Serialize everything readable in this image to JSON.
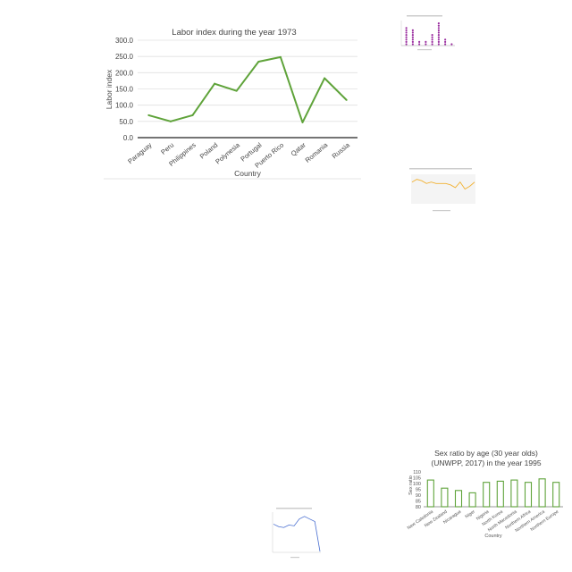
{
  "chart_data": [
    {
      "type": "line",
      "title": "Labor index during the year 1973",
      "xlabel": "Country",
      "ylabel": "Labor index",
      "categories": [
        "Paraguay",
        "Peru",
        "Philippines",
        "Poland",
        "Polynesia",
        "Portugal",
        "Puerto Rico",
        "Qatar",
        "Romania",
        "Russia"
      ],
      "values": [
        69,
        50,
        69,
        166,
        144,
        234,
        248,
        47,
        183,
        116
      ],
      "yticks": [
        "0.0",
        "50.0",
        "100.0",
        "150.0",
        "200.0",
        "250.0",
        "300.0"
      ],
      "ylim": [
        0,
        300
      ],
      "grid": true,
      "color": "#5fa33a"
    },
    {
      "type": "scatter",
      "title": "",
      "xlabel": "",
      "ylabel": "",
      "x": [
        1,
        2,
        3,
        4,
        5,
        6,
        7,
        8
      ],
      "values": [
        24,
        20,
        5,
        6,
        15,
        29,
        10,
        4
      ],
      "ylim": [
        0,
        30
      ],
      "color": "#9b2fa0"
    },
    {
      "type": "line",
      "title": "",
      "xlabel": "",
      "ylabel": "",
      "values": [
        15,
        17,
        16,
        14,
        15,
        14,
        14,
        14,
        13,
        11,
        15,
        10,
        12,
        15
      ],
      "ylim": [
        0,
        20
      ],
      "color": "#f2b233"
    },
    {
      "type": "bar",
      "title": "Sex ratio by age (30 year olds) (UNWPP, 2017) in the year 1995",
      "xlabel": "Country",
      "ylabel": "Sex ratio",
      "categories": [
        "New Caledonia",
        "New Zealand",
        "Nicaragua",
        "Niger",
        "Nigeria",
        "North Korea",
        "North Macedonia",
        "Northern Africa",
        "Northern America",
        "Northern Europe"
      ],
      "values": [
        103,
        96,
        94,
        92,
        101,
        102,
        103,
        101,
        104,
        101
      ],
      "yticks": [
        "80",
        "85",
        "90",
        "95",
        "100",
        "105",
        "110"
      ],
      "ylim": [
        80,
        110
      ],
      "color": "#5fa33a"
    },
    {
      "type": "line",
      "title": "",
      "xlabel": "",
      "ylabel": "",
      "values": [
        52,
        49,
        48,
        51,
        50,
        58,
        61,
        58,
        55,
        20
      ],
      "ylim": [
        20,
        65
      ],
      "color": "#4a6fd1"
    }
  ]
}
